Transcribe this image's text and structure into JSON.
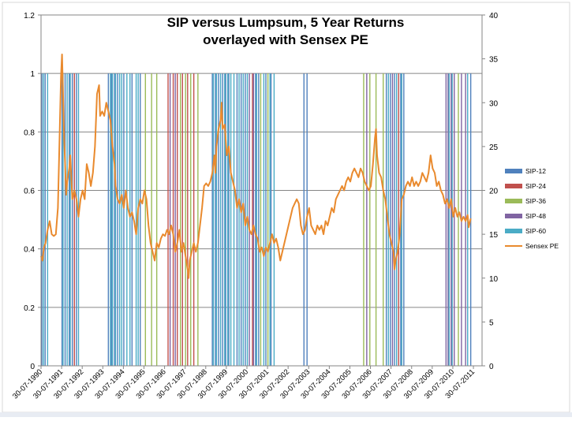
{
  "chart_data": {
    "type": "bar+line",
    "title_line1": "SIP versus Lumpsum, 5 Year Returns",
    "title_line2": "overlayed with Sensex PE",
    "y_left": {
      "min": 0,
      "max": 1.2,
      "step": 0.2,
      "ticks": [
        "0",
        "0.2",
        "0.4",
        "0.6",
        "0.8",
        "1",
        "1.2"
      ]
    },
    "y_right": {
      "min": 0,
      "max": 40,
      "step": 5,
      "ticks": [
        "0",
        "5",
        "10",
        "15",
        "20",
        "25",
        "30",
        "35",
        "40"
      ]
    },
    "x_axis": {
      "start": 1990.58,
      "end": 2012.0,
      "tick_labels": [
        "30-07-1990",
        "30-07-1991",
        "30-07-1992",
        "30-07-1993",
        "30-07-1994",
        "30-07-1995",
        "30-07-1996",
        "30-07-1997",
        "30-07-1998",
        "30-07-1999",
        "30-07-2000",
        "30-07-2001",
        "30-07-2002",
        "30-07-2003",
        "30-07-2004",
        "30-07-2005",
        "30-07-2006",
        "30-07-2007",
        "30-07-2008",
        "30-07-2009",
        "30-07-2010",
        "30-07-2011"
      ]
    },
    "gridlines": "horizontal",
    "legend_position": "right",
    "colors": {
      "SIP-12": "#4f81bd",
      "SIP-24": "#c0504d",
      "SIP-36": "#9bbb59",
      "SIP-48": "#8064a2",
      "SIP-60": "#4bacc6",
      "Sensex PE": "#e98a2e"
    },
    "legend": [
      "SIP-12",
      "SIP-24",
      "SIP-36",
      "SIP-48",
      "SIP-60",
      "Sensex PE"
    ],
    "bar_value": 1,
    "bar_series": [
      {
        "name": "SIP-12",
        "dates": [
          1990.62,
          1990.78,
          1991.6,
          1991.75,
          1991.95,
          1992.1,
          1992.3,
          1993.85,
          1994.0,
          1994.15,
          1994.3,
          1994.6,
          1995.0,
          1995.4,
          1998.9,
          1999.05,
          1999.2,
          1999.4,
          1999.55,
          1999.7,
          2000.1,
          2000.3,
          2000.5,
          2001.0,
          2001.15,
          2001.5,
          2001.75,
          2003.35,
          2003.5,
          2007.35,
          2007.55,
          2007.75,
          2008.05,
          2008.2,
          2011.45
        ]
      },
      {
        "name": "SIP-24",
        "dates": [
          1992.2,
          1996.75,
          1997.0,
          1997.2,
          1997.45,
          1997.7,
          1998.0,
          2000.85,
          2007.95
        ]
      },
      {
        "name": "SIP-36",
        "dates": [
          1995.65,
          1995.95,
          1996.2,
          1997.35,
          1997.6,
          1997.85,
          1998.2,
          2001.25,
          2001.6,
          2006.25,
          2006.55,
          2006.85,
          2007.2,
          2010.85
        ]
      },
      {
        "name": "SIP-48",
        "dates": [
          1996.85,
          1997.1,
          2000.7,
          2000.9,
          2006.4,
          2007.65,
          2010.25,
          2010.35,
          2010.5,
          2010.65,
          2011.0,
          2011.2
        ]
      },
      {
        "name": "SIP-60",
        "dates": [
          1990.7,
          1990.9,
          1991.65,
          1991.85,
          1992.0,
          1992.4,
          1993.95,
          1994.05,
          1994.2,
          1994.4,
          1994.5,
          1994.75,
          1994.9,
          1995.2,
          1995.3,
          1998.95,
          1999.1,
          1999.3,
          1999.5,
          1999.65,
          1999.8,
          1999.95,
          2000.2,
          2000.4,
          2000.6,
          2001.05,
          2001.4,
          2001.7,
          2001.9,
          2007.45,
          2007.85,
          2008.1,
          2010.4,
          2010.55,
          2011.3
        ]
      }
    ],
    "line_series": {
      "name": "Sensex PE",
      "axis": "right",
      "points": [
        [
          1990.58,
          12.5
        ],
        [
          1990.65,
          12
        ],
        [
          1990.72,
          13.5
        ],
        [
          1990.8,
          14
        ],
        [
          1990.9,
          15.5
        ],
        [
          1991.0,
          16.5
        ],
        [
          1991.1,
          15
        ],
        [
          1991.2,
          14.8
        ],
        [
          1991.3,
          15
        ],
        [
          1991.4,
          18
        ],
        [
          1991.5,
          28
        ],
        [
          1991.55,
          33
        ],
        [
          1991.6,
          35.5
        ],
        [
          1991.65,
          31
        ],
        [
          1991.7,
          26
        ],
        [
          1991.75,
          23
        ],
        [
          1991.8,
          19.5
        ],
        [
          1991.85,
          21
        ],
        [
          1991.95,
          22.5
        ],
        [
          1992.0,
          24
        ],
        [
          1992.1,
          19
        ],
        [
          1992.2,
          20
        ],
        [
          1992.3,
          19
        ],
        [
          1992.4,
          17
        ],
        [
          1992.5,
          19
        ],
        [
          1992.6,
          20
        ],
        [
          1992.7,
          19
        ],
        [
          1992.8,
          23
        ],
        [
          1992.9,
          22
        ],
        [
          1993.0,
          20.5
        ],
        [
          1993.1,
          22
        ],
        [
          1993.2,
          25
        ],
        [
          1993.3,
          31
        ],
        [
          1993.4,
          32
        ],
        [
          1993.45,
          28.5
        ],
        [
          1993.55,
          29
        ],
        [
          1993.65,
          28.5
        ],
        [
          1993.75,
          30
        ],
        [
          1993.85,
          29
        ],
        [
          1993.95,
          28
        ],
        [
          1994.05,
          25
        ],
        [
          1994.15,
          23
        ],
        [
          1994.2,
          20.5
        ],
        [
          1994.3,
          19
        ],
        [
          1994.4,
          18.5
        ],
        [
          1994.5,
          19.5
        ],
        [
          1994.6,
          18
        ],
        [
          1994.7,
          20
        ],
        [
          1994.8,
          18
        ],
        [
          1994.9,
          17
        ],
        [
          1995.0,
          17.5
        ],
        [
          1995.1,
          16.5
        ],
        [
          1995.2,
          15
        ],
        [
          1995.3,
          18
        ],
        [
          1995.4,
          19
        ],
        [
          1995.5,
          18.5
        ],
        [
          1995.6,
          20
        ],
        [
          1995.7,
          19
        ],
        [
          1995.8,
          16
        ],
        [
          1995.9,
          14
        ],
        [
          1996.0,
          13
        ],
        [
          1996.1,
          12
        ],
        [
          1996.2,
          14
        ],
        [
          1996.3,
          13.5
        ],
        [
          1996.4,
          14.5
        ],
        [
          1996.5,
          15
        ],
        [
          1996.6,
          14.8
        ],
        [
          1996.7,
          15.5
        ],
        [
          1996.8,
          15
        ],
        [
          1996.9,
          16
        ],
        [
          1997.0,
          15
        ],
        [
          1997.1,
          13
        ],
        [
          1997.2,
          14
        ],
        [
          1997.3,
          15.5
        ],
        [
          1997.4,
          13
        ],
        [
          1997.5,
          14
        ],
        [
          1997.6,
          12.5
        ],
        [
          1997.7,
          11
        ],
        [
          1997.75,
          10
        ],
        [
          1997.8,
          12
        ],
        [
          1997.9,
          13
        ],
        [
          1998.0,
          14
        ],
        [
          1998.1,
          13
        ],
        [
          1998.2,
          14
        ],
        [
          1998.3,
          16
        ],
        [
          1998.4,
          18
        ],
        [
          1998.5,
          20.5
        ],
        [
          1998.6,
          20.8
        ],
        [
          1998.7,
          20.5
        ],
        [
          1998.8,
          21
        ],
        [
          1998.9,
          22
        ],
        [
          1999.0,
          24
        ],
        [
          1999.05,
          22
        ],
        [
          1999.1,
          25
        ],
        [
          1999.2,
          27
        ],
        [
          1999.3,
          28
        ],
        [
          1999.35,
          30
        ],
        [
          1999.4,
          27
        ],
        [
          1999.5,
          27.5
        ],
        [
          1999.6,
          24
        ],
        [
          1999.7,
          25
        ],
        [
          1999.8,
          22
        ],
        [
          1999.9,
          21
        ],
        [
          2000.0,
          20
        ],
        [
          2000.1,
          18
        ],
        [
          2000.2,
          19
        ],
        [
          2000.3,
          17.5
        ],
        [
          2000.4,
          18.5
        ],
        [
          2000.5,
          16
        ],
        [
          2000.6,
          17
        ],
        [
          2000.7,
          15.5
        ],
        [
          2000.8,
          15
        ],
        [
          2000.9,
          16
        ],
        [
          2001.0,
          15
        ],
        [
          2001.1,
          14.5
        ],
        [
          2001.2,
          13
        ],
        [
          2001.3,
          13.5
        ],
        [
          2001.4,
          12.5
        ],
        [
          2001.5,
          13.5
        ],
        [
          2001.6,
          13
        ],
        [
          2001.7,
          14
        ],
        [
          2001.8,
          15
        ],
        [
          2001.9,
          14
        ],
        [
          2002.0,
          14.5
        ],
        [
          2002.1,
          13.5
        ],
        [
          2002.2,
          12
        ],
        [
          2002.3,
          13
        ],
        [
          2002.4,
          14
        ],
        [
          2002.5,
          15
        ],
        [
          2002.6,
          16
        ],
        [
          2002.7,
          17
        ],
        [
          2002.8,
          18
        ],
        [
          2002.9,
          18.5
        ],
        [
          2003.0,
          19
        ],
        [
          2003.1,
          18.5
        ],
        [
          2003.2,
          16
        ],
        [
          2003.3,
          15
        ],
        [
          2003.4,
          15.5
        ],
        [
          2003.5,
          17
        ],
        [
          2003.6,
          18
        ],
        [
          2003.7,
          16
        ],
        [
          2003.8,
          15.5
        ],
        [
          2003.9,
          15
        ],
        [
          2004.0,
          16
        ],
        [
          2004.1,
          15.5
        ],
        [
          2004.2,
          16
        ],
        [
          2004.3,
          15
        ],
        [
          2004.4,
          16.5
        ],
        [
          2004.5,
          16
        ],
        [
          2004.6,
          17
        ],
        [
          2004.7,
          18
        ],
        [
          2004.8,
          17.5
        ],
        [
          2004.9,
          19
        ],
        [
          2005.0,
          19.5
        ],
        [
          2005.1,
          20
        ],
        [
          2005.2,
          20.5
        ],
        [
          2005.3,
          20
        ],
        [
          2005.4,
          21
        ],
        [
          2005.5,
          21.5
        ],
        [
          2005.6,
          21
        ],
        [
          2005.7,
          22
        ],
        [
          2005.8,
          22.5
        ],
        [
          2005.9,
          22
        ],
        [
          2006.0,
          21.5
        ],
        [
          2006.1,
          22.5
        ],
        [
          2006.2,
          22
        ],
        [
          2006.3,
          21
        ],
        [
          2006.4,
          20.5
        ],
        [
          2006.5,
          20
        ],
        [
          2006.6,
          20.5
        ],
        [
          2006.7,
          23
        ],
        [
          2006.8,
          26
        ],
        [
          2006.85,
          27
        ],
        [
          2006.9,
          24
        ],
        [
          2007.0,
          22
        ],
        [
          2007.1,
          21.5
        ],
        [
          2007.2,
          20
        ],
        [
          2007.3,
          19
        ],
        [
          2007.4,
          17
        ],
        [
          2007.5,
          15
        ],
        [
          2007.6,
          14
        ],
        [
          2007.7,
          13
        ],
        [
          2007.75,
          11
        ],
        [
          2007.8,
          12
        ],
        [
          2007.9,
          13
        ],
        [
          2008.0,
          15
        ],
        [
          2008.1,
          19
        ],
        [
          2008.2,
          19.5
        ],
        [
          2008.3,
          20.5
        ],
        [
          2008.4,
          21
        ],
        [
          2008.5,
          20.5
        ],
        [
          2008.6,
          21.5
        ],
        [
          2008.7,
          20.5
        ],
        [
          2008.8,
          21
        ],
        [
          2008.9,
          20.5
        ],
        [
          2009.0,
          21
        ],
        [
          2009.1,
          22
        ],
        [
          2009.2,
          21.5
        ],
        [
          2009.3,
          21
        ],
        [
          2009.4,
          22
        ],
        [
          2009.5,
          24
        ],
        [
          2009.6,
          22.5
        ],
        [
          2009.7,
          22
        ],
        [
          2009.8,
          20.5
        ],
        [
          2009.9,
          21
        ],
        [
          2010.0,
          20
        ],
        [
          2010.1,
          19.5
        ],
        [
          2010.2,
          18.5
        ],
        [
          2010.3,
          19
        ],
        [
          2010.4,
          18
        ],
        [
          2010.5,
          19
        ],
        [
          2010.6,
          17
        ],
        [
          2010.7,
          18
        ],
        [
          2010.8,
          17
        ],
        [
          2010.9,
          17.5
        ],
        [
          2011.0,
          16.5
        ],
        [
          2011.1,
          17
        ],
        [
          2011.2,
          16.5
        ],
        [
          2011.3,
          17.2
        ],
        [
          2011.35,
          15.8
        ],
        [
          2011.45,
          16.8
        ]
      ]
    }
  }
}
